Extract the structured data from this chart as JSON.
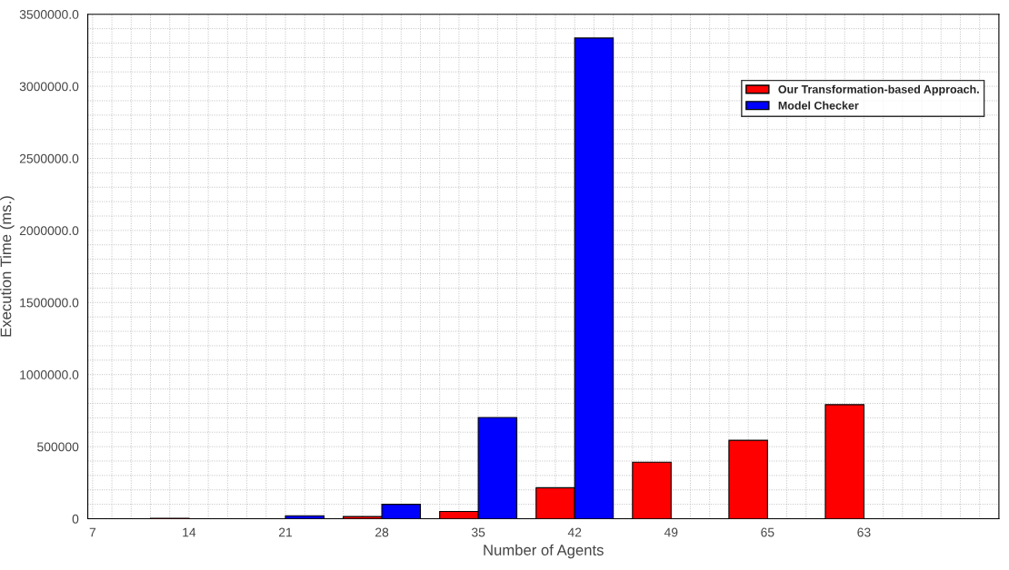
{
  "chart_data": {
    "type": "bar",
    "xlabel": "Number of Agents",
    "ylabel": "Execution Time (ms.)",
    "categories": [
      "7",
      "14",
      "21",
      "28",
      "35",
      "42",
      "49",
      "65",
      "63",
      null
    ],
    "series": [
      {
        "name": "Our Transformation-based Approach.",
        "color": "#ff0000",
        "values": [
          null,
          3000,
          null,
          15000,
          50000,
          215000,
          392000,
          544000,
          791000,
          null
        ]
      },
      {
        "name": "Model Checker",
        "color": "#0000ff",
        "values": [
          null,
          null,
          20000,
          100000,
          702000,
          3335000,
          null,
          null,
          null,
          null
        ]
      }
    ],
    "ylim": [
      0,
      3500000
    ],
    "yticks": [
      0,
      500000,
      {
        "value": 1000000,
        "label": "1000000.0"
      },
      {
        "value": 1500000,
        "label": "1500000.0"
      },
      {
        "value": 2000000,
        "label": "2000000.0"
      },
      {
        "value": 2500000,
        "label": "2500000.0"
      },
      {
        "value": 3000000,
        "label": "3000000.0"
      },
      {
        "value": 3500000,
        "label": "3500000.0"
      }
    ],
    "grid": true,
    "legend": "top right"
  }
}
